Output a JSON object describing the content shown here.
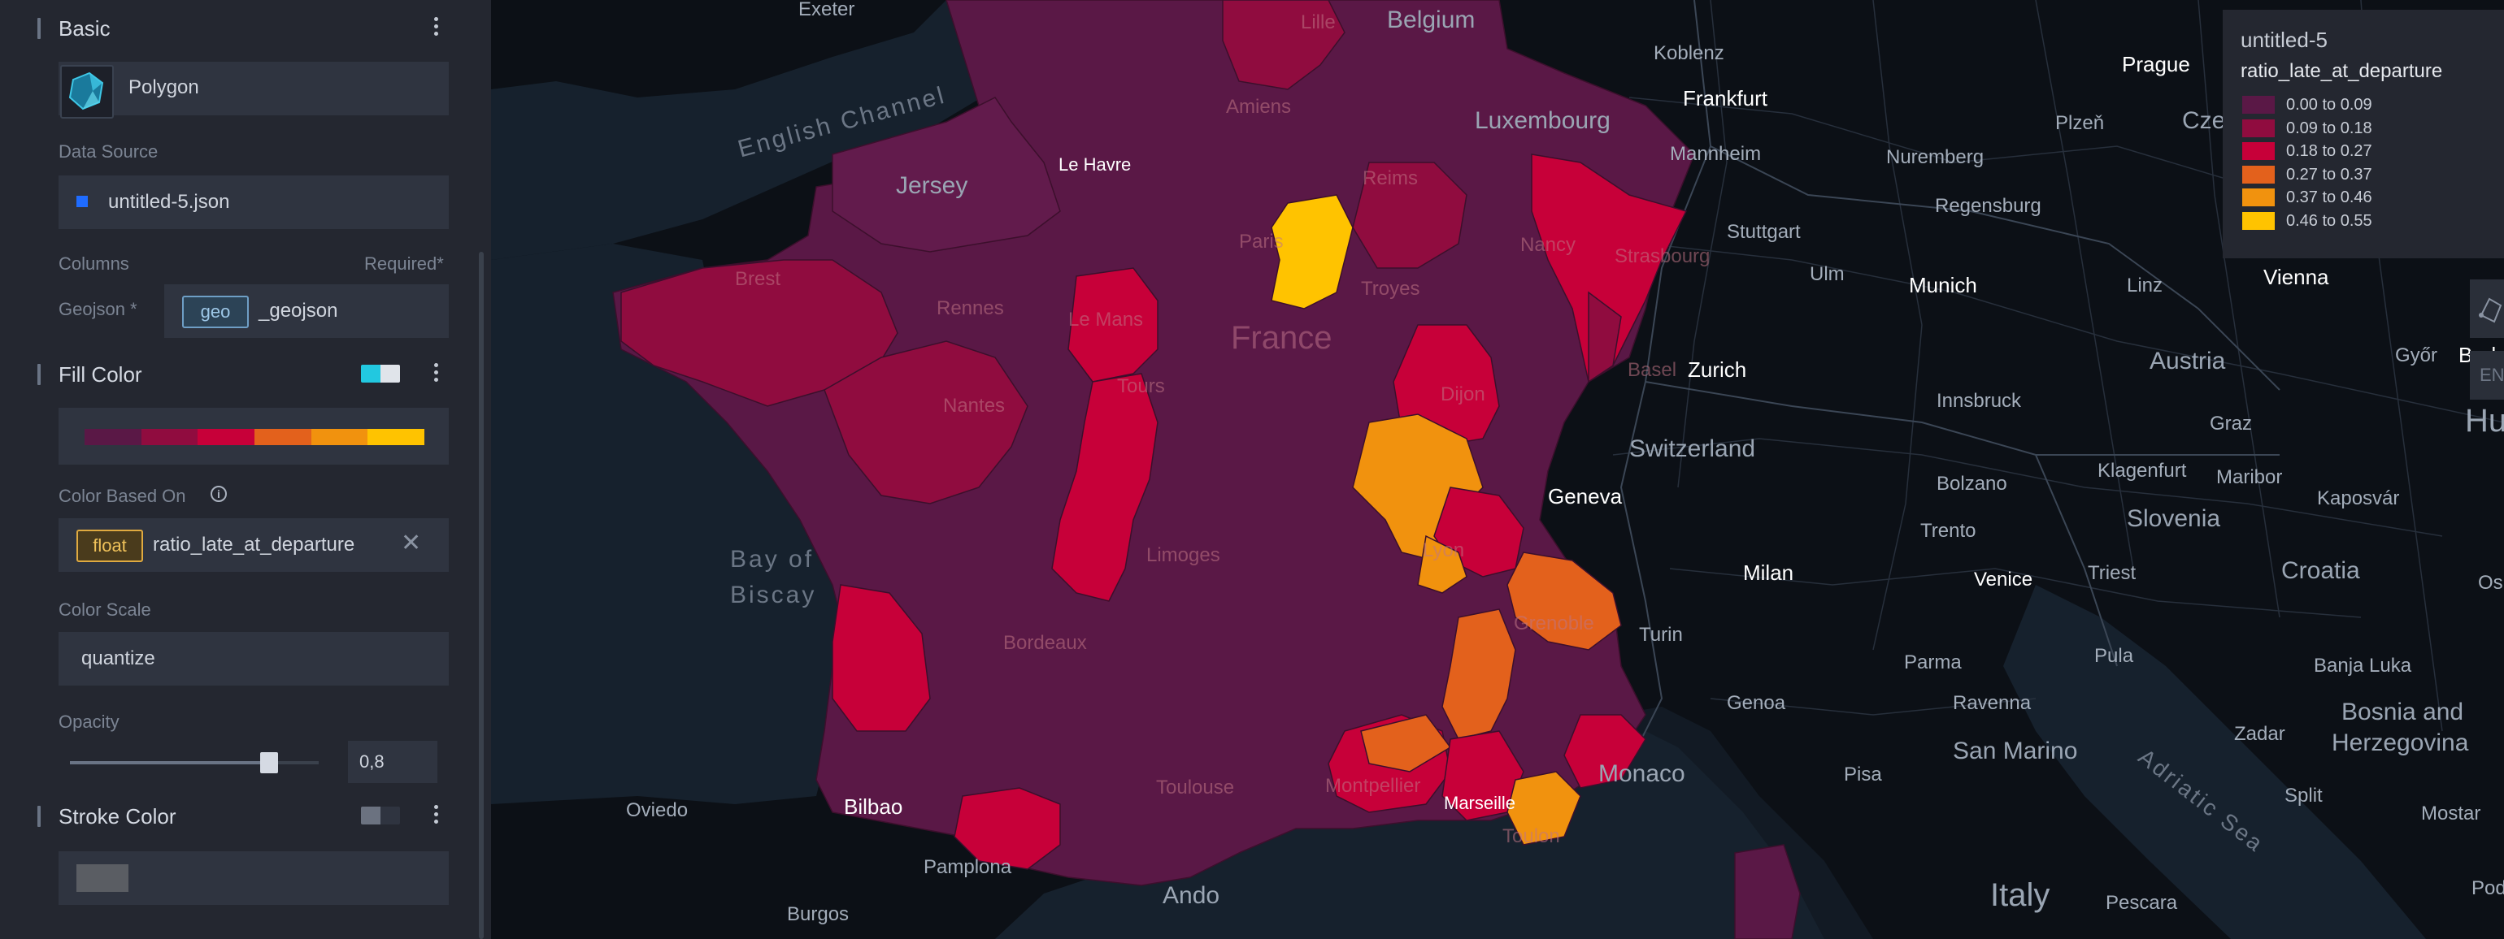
{
  "panel": {
    "basic": {
      "title": "Basic"
    },
    "layer_type": "Polygon",
    "data_source": {
      "label": "Data Source",
      "value": "untitled-5.json",
      "color": "#1f6cff"
    },
    "columns": {
      "label": "Columns",
      "required": "Required*",
      "geojson_label": "Geojson *",
      "geo_tag": "geo",
      "geojson_value": "_geojson"
    },
    "fill_color": {
      "title": "Fill Color",
      "palette": [
        "#5a1846",
        "#900c3f",
        "#c70039",
        "#e3611c",
        "#f1920e",
        "#ffc300"
      ],
      "swatch_colors": [
        "#22c8e0",
        "#e0e4ea"
      ],
      "color_based_on_label": "Color Based On",
      "field_type": "float",
      "field_name": "ratio_late_at_departure",
      "color_scale_label": "Color Scale",
      "color_scale": "quantize",
      "opacity_label": "Opacity",
      "opacity_value": "0,8",
      "opacity_level": 0.8
    },
    "stroke_color": {
      "title": "Stroke Color",
      "swatch_colors": [
        "#6b7280",
        "#2f3440"
      ],
      "color": "#5a5d63"
    }
  },
  "legend": {
    "layer_name": "untitled-5",
    "field": "ratio_late_at_departure",
    "entries": [
      {
        "label": "0.00 to 0.09",
        "color": "#5a1846"
      },
      {
        "label": "0.09 to 0.18",
        "color": "#900c3f"
      },
      {
        "label": "0.18 to 0.27",
        "color": "#c70039"
      },
      {
        "label": "0.27 to 0.37",
        "color": "#e3611c"
      },
      {
        "label": "0.37 to 0.46",
        "color": "#f1920e"
      },
      {
        "label": "0.46 to 0.55",
        "color": "#ffc300"
      }
    ]
  },
  "map": {
    "edge_button": "EN",
    "labels": {
      "exeter": "Exeter",
      "lille": "Lille",
      "belgium": "Belgium",
      "koblenz": "Koblenz",
      "prague": "Prague",
      "czech": "Cze",
      "english_channel": "English Channel",
      "amiens": "Amiens",
      "luxembourg": "Luxembourg",
      "frankfurt": "Frankfurt",
      "plzen": "Plzeň",
      "le_havre": "Le Havre",
      "jersey": "Jersey",
      "reims": "Reims",
      "mannheim": "Mannheim",
      "nuremberg": "Nuremberg",
      "paris": "Paris",
      "regensburg": "Regensburg",
      "stuttgart": "Stuttgart",
      "nancy": "Nancy",
      "strasbourg": "Strasbourg",
      "brest": "Brest",
      "ulm": "Ulm",
      "munich": "Munich",
      "linz": "Linz",
      "vienna": "Vienna",
      "rennes": "Rennes",
      "troyes": "Troyes",
      "le_mans": "Le Mans",
      "france": "France",
      "basel": "Basel",
      "zurich": "Zurich",
      "gyor": "Győr",
      "budapest": "Bud",
      "austria": "Austria",
      "tours": "Tours",
      "dijon": "Dijon",
      "innsbruck": "Innsbruck",
      "nantes": "Nantes",
      "switzerland": "Switzerland",
      "graz": "Graz",
      "hungary": "Hu",
      "klagenfurt": "Klagenfurt",
      "maribor": "Maribor",
      "bolzano": "Bolzano",
      "kaposvar": "Kaposvár",
      "geneva": "Geneva",
      "slovenia": "Slovenia",
      "trento": "Trento",
      "bay_of_biscay_1": "Bay of",
      "bay_of_biscay_2": "Biscay",
      "limoges": "Limoges",
      "lyon": "Lyon",
      "milan": "Milan",
      "venice": "Venice",
      "triest": "Triest",
      "croatia": "Croatia",
      "osijek": "Osijek",
      "grenoble": "Grenoble",
      "turin": "Turin",
      "bordeaux": "Bordeaux",
      "parma": "Parma",
      "pula": "Pula",
      "banja_luka": "Banja Luka",
      "genoa": "Genoa",
      "ravenna": "Ravenna",
      "bosnia_1": "Bosnia and",
      "bosnia_2": "Herzegovina",
      "zadar": "Zadar",
      "san_marino": "San Marino",
      "adriatic_sea": "Adriatic Sea",
      "toulouse": "Toulouse",
      "montpellier": "Montpellier",
      "monaco": "Monaco",
      "marseille": "Marseille",
      "pisa": "Pisa",
      "split": "Split",
      "mostar": "Mostar",
      "oviedo": "Oviedo",
      "bilbao": "Bilbao",
      "toulon": "Toulon",
      "pamplona": "Pamplona",
      "andorra": "Ando",
      "italy": "Italy",
      "burgos": "Burgos",
      "pescara": "Pescara",
      "podgorica": "Pod"
    }
  }
}
